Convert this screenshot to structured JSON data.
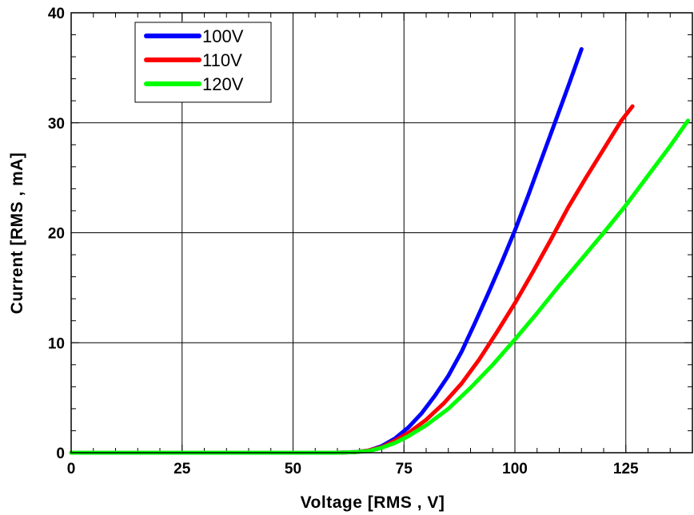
{
  "chart_data": {
    "type": "line",
    "xlabel": "Voltage [RMS , V]",
    "ylabel": "Current [RMS , mA]",
    "xlim": [
      0,
      140
    ],
    "ylim": [
      0,
      40
    ],
    "x_ticks": [
      0,
      25,
      50,
      75,
      100,
      125
    ],
    "y_ticks": [
      0,
      10,
      20,
      30,
      40
    ],
    "grid": true,
    "legend_position": "top-left",
    "series": [
      {
        "name": "100V",
        "color": "#0000ff",
        "x": [
          0,
          60,
          64,
          67,
          70,
          73,
          76,
          79,
          82,
          85,
          88,
          91,
          94,
          97,
          100,
          103,
          106,
          109,
          112,
          115
        ],
        "y": [
          0,
          0,
          0.05,
          0.2,
          0.6,
          1.3,
          2.3,
          3.6,
          5.2,
          7.0,
          9.2,
          11.8,
          14.5,
          17.3,
          20.2,
          23.4,
          26.7,
          30.0,
          33.3,
          36.7
        ]
      },
      {
        "name": "110V",
        "color": "#ff0000",
        "x": [
          0,
          60,
          64,
          67,
          70,
          73,
          76,
          80,
          84,
          88,
          92,
          96,
          100,
          104,
          108,
          112,
          116,
          120,
          124,
          126.5
        ],
        "y": [
          0,
          0,
          0.05,
          0.2,
          0.5,
          1.1,
          1.8,
          3.0,
          4.5,
          6.3,
          8.5,
          11.0,
          13.6,
          16.4,
          19.3,
          22.3,
          25.0,
          27.6,
          30.2,
          31.5
        ]
      },
      {
        "name": "120V",
        "color": "#00ff00",
        "x": [
          0,
          60,
          64,
          67,
          70,
          73,
          76,
          80,
          85,
          90,
          95,
          100,
          105,
          110,
          115,
          120,
          125,
          130,
          135,
          139
        ],
        "y": [
          0,
          0,
          0.05,
          0.15,
          0.45,
          0.9,
          1.5,
          2.5,
          4.0,
          5.9,
          8.0,
          10.3,
          12.7,
          15.2,
          17.6,
          20.0,
          22.5,
          25.2,
          27.9,
          30.2
        ]
      }
    ]
  }
}
